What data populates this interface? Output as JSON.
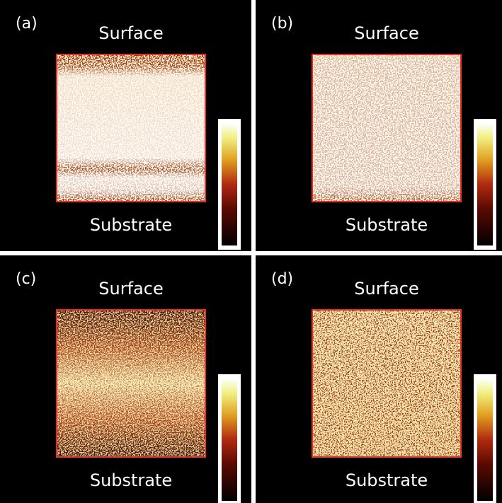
{
  "panels": [
    {
      "label": "(a)",
      "top": "Surface",
      "bottom": "Substrate"
    },
    {
      "label": "(b)",
      "top": "Surface",
      "bottom": "Substrate"
    },
    {
      "label": "(c)",
      "top": "Surface",
      "bottom": "Substrate"
    },
    {
      "label": "(d)",
      "top": "Surface",
      "bottom": "Substrate"
    }
  ]
}
